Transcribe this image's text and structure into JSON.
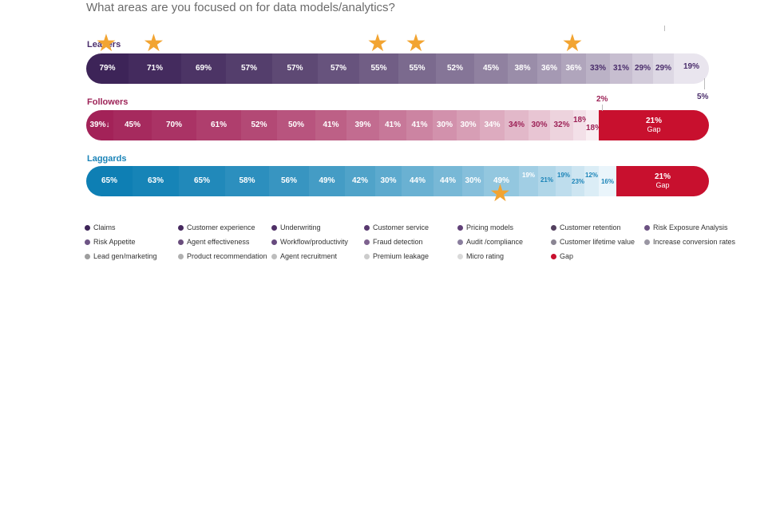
{
  "question": "What areas are you focused on for data models/analytics?",
  "chart_data": {
    "type": "bar",
    "stacked": true,
    "orientation": "horizontal",
    "categories": [
      "Claims",
      "Customer experience",
      "Underwriting",
      "Customer service",
      "Pricing models",
      "Customer retention",
      "Risk Exposure Analysis",
      "Risk Appetite",
      "Agent effectiveness",
      "Workflow/productivity",
      "Fraud detection",
      "Audit /compliance",
      "Customer lifetime value",
      "Increase conversion rates",
      "Lead gen/marketing",
      "Product recommendation",
      "Agent recruitment",
      "Premium leakage",
      "Micro rating",
      "Gap"
    ],
    "rows": [
      {
        "name": "Leaders",
        "values": [
          79,
          71,
          69,
          57,
          57,
          57,
          55,
          55,
          52,
          45,
          38,
          36,
          36,
          33,
          31,
          29,
          29,
          19
        ],
        "labels": [
          "79%",
          "71%",
          "69%",
          "57%",
          "57%",
          "57%",
          "55%",
          "55%",
          "52%",
          "45%",
          "38%",
          "36%",
          "36%",
          "33%",
          "31%",
          "29%",
          "29%",
          "19%"
        ],
        "starred": [
          0,
          1,
          6,
          7,
          12
        ],
        "extra_label": "5%"
      },
      {
        "name": "Followers",
        "values": [
          39,
          45,
          70,
          61,
          52,
          50,
          41,
          39,
          41,
          41,
          30,
          30,
          34,
          34,
          30,
          32,
          18,
          18,
          21
        ],
        "labels": [
          "39%↓",
          "45%",
          "70%",
          "61%",
          "52%",
          "50%",
          "41%",
          "39%",
          "41%",
          "41%",
          "30%",
          "30%",
          "34%",
          "34%",
          "30%",
          "32%",
          "18%",
          "18%",
          "21%"
        ],
        "gap_value": 21,
        "gap_label": "21%",
        "gap_sublabel": "Gap",
        "extra_label": "2%"
      },
      {
        "name": "Laggards",
        "values": [
          65,
          63,
          65,
          58,
          56,
          49,
          42,
          30,
          44,
          44,
          30,
          49,
          19,
          21,
          19,
          23,
          12,
          16,
          21
        ],
        "labels": [
          "65%",
          "63%",
          "65%",
          "58%",
          "56%",
          "49%",
          "42%",
          "30%",
          "44%",
          "44%",
          "30%",
          "49%",
          "19%",
          "21%",
          "19%",
          "23%",
          "12%",
          "16%",
          "21%"
        ],
        "starred": [
          11
        ],
        "gap_value": 21,
        "gap_label": "21%",
        "gap_sublabel": "Gap"
      }
    ],
    "legend": [
      {
        "label": "Claims",
        "color": "#3d2458"
      },
      {
        "label": "Customer experience",
        "color": "#46295f"
      },
      {
        "label": "Underwriting",
        "color": "#4f3067"
      },
      {
        "label": "Customer service",
        "color": "#58386f"
      },
      {
        "label": "Pricing models",
        "color": "#614178"
      },
      {
        "label": "Customer retention",
        "color": "#53405f"
      },
      {
        "label": "Risk Exposure Analysis",
        "color": "#6c5282"
      },
      {
        "label": "Risk Appetite",
        "color": "#6e5585"
      },
      {
        "label": "Agent effectiveness",
        "color": "#6a4e7d"
      },
      {
        "label": "Workflow/productivity",
        "color": "#674b7f"
      },
      {
        "label": "Fraud detection",
        "color": "#7e628f"
      },
      {
        "label": "Audit /compliance",
        "color": "#8a7e9e"
      },
      {
        "label": "Customer lifetime value",
        "color": "#8a8593"
      },
      {
        "label": "Increase conversion rates",
        "color": "#9a96a3"
      },
      {
        "label": "Lead gen/marketing",
        "color": "#9e9e9e"
      },
      {
        "label": "Product recommendation",
        "color": "#b0b0b0"
      },
      {
        "label": "Agent recruitment",
        "color": "#bdbdbd"
      },
      {
        "label": "Premium leakage",
        "color": "#cccccc"
      },
      {
        "label": "Micro rating",
        "color": "#d9d9d9"
      },
      {
        "label": "Gap",
        "color": "#c8102e"
      }
    ],
    "colors": {
      "leaders_text": "#4a2d6b",
      "followers_text": "#9d2257",
      "laggards_text": "#1b84b8",
      "gap": "#c8102e",
      "star": "#f2a431"
    }
  }
}
